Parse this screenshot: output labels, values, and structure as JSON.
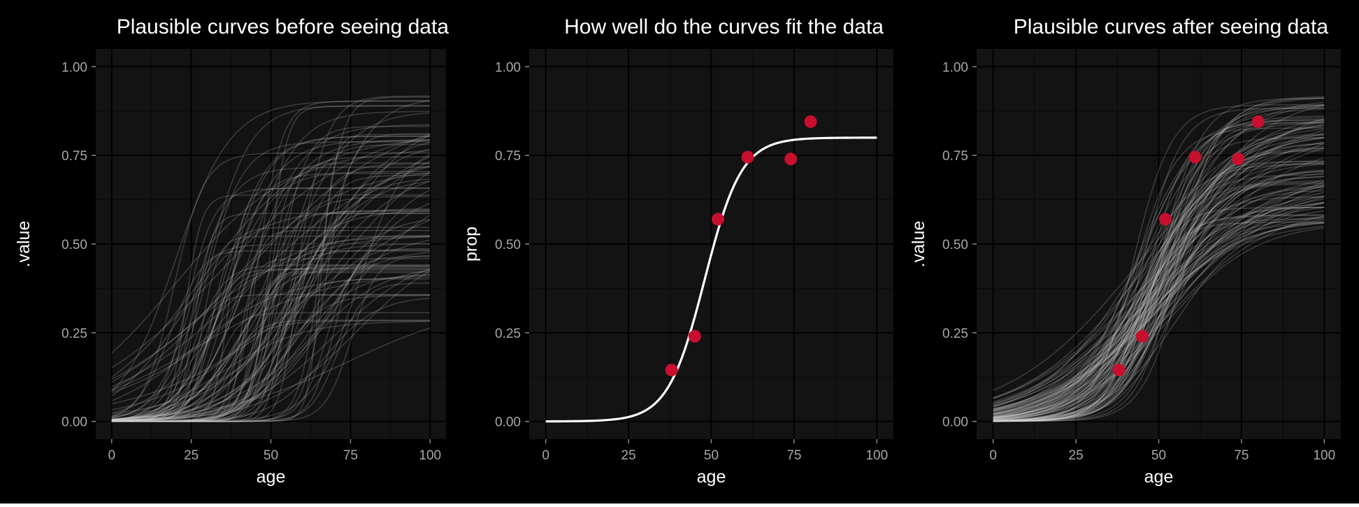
{
  "chart_data": [
    {
      "type": "line",
      "title": "Plausible curves before seeing data",
      "xlabel": "age",
      "ylabel": ".value",
      "xlim": [
        -5,
        105
      ],
      "ylim": [
        -0.05,
        1.05
      ],
      "x_ticks": [
        0,
        25,
        50,
        75,
        100
      ],
      "x_tick_labels": [
        "0",
        "25",
        "50",
        "75",
        "100"
      ],
      "y_ticks": [
        0,
        0.25,
        0.5,
        0.75,
        1
      ],
      "y_tick_labels": [
        "0.00",
        "0.25",
        "0.50",
        "0.75",
        "1.00"
      ],
      "grid": true,
      "line_color": "#d8d8d8",
      "curve_model": "logistic",
      "curve_count": 100,
      "curve_params": {
        "max_range": [
          0.28,
          0.92
        ],
        "midpoint_range": [
          18,
          78
        ],
        "slope_range": [
          0.04,
          0.5
        ]
      },
      "series": [],
      "points": []
    },
    {
      "type": "line",
      "title": "How well do the curves fit the data",
      "xlabel": "age",
      "ylabel": "prop",
      "xlim": [
        -5,
        105
      ],
      "ylim": [
        -0.05,
        1.05
      ],
      "x_ticks": [
        0,
        25,
        50,
        75,
        100
      ],
      "x_tick_labels": [
        "0",
        "25",
        "50",
        "75",
        "100"
      ],
      "y_ticks": [
        0,
        0.25,
        0.5,
        0.75,
        1
      ],
      "y_tick_labels": [
        "0.00",
        "0.25",
        "0.50",
        "0.75",
        "1.00"
      ],
      "grid": true,
      "line_color": "#ffffff",
      "curve_model": "logistic",
      "series": [
        {
          "max": 0.8,
          "midpoint": 48,
          "slope": 0.18
        }
      ],
      "point_color": "#c8102e",
      "points": [
        {
          "x": 38,
          "y": 0.145
        },
        {
          "x": 45,
          "y": 0.24
        },
        {
          "x": 52,
          "y": 0.57
        },
        {
          "x": 61,
          "y": 0.745
        },
        {
          "x": 74,
          "y": 0.74
        },
        {
          "x": 80,
          "y": 0.845
        }
      ]
    },
    {
      "type": "line",
      "title": "Plausible curves after seeing data",
      "xlabel": "age",
      "ylabel": ".value",
      "xlim": [
        -5,
        105
      ],
      "ylim": [
        -0.05,
        1.05
      ],
      "x_ticks": [
        0,
        25,
        50,
        75,
        100
      ],
      "x_tick_labels": [
        "0",
        "25",
        "50",
        "75",
        "100"
      ],
      "y_ticks": [
        0,
        0.25,
        0.5,
        0.75,
        1
      ],
      "y_tick_labels": [
        "0.00",
        "0.25",
        "0.50",
        "0.75",
        "1.00"
      ],
      "grid": true,
      "line_color": "#d8d8d8",
      "curve_model": "logistic",
      "curve_count": 100,
      "curve_params": {
        "max_range": [
          0.56,
          0.92
        ],
        "midpoint_range": [
          42,
          56
        ],
        "slope_range": [
          0.05,
          0.18
        ]
      },
      "series": [],
      "point_color": "#c8102e",
      "points": [
        {
          "x": 38,
          "y": 0.145
        },
        {
          "x": 45,
          "y": 0.24
        },
        {
          "x": 52,
          "y": 0.57
        },
        {
          "x": 61,
          "y": 0.745
        },
        {
          "x": 74,
          "y": 0.74
        },
        {
          "x": 80,
          "y": 0.845
        }
      ]
    }
  ],
  "colors": {
    "figure_background": "#000000",
    "panel_background": "#131313",
    "grid_major": "#000000",
    "grid_minor": "#0a0a0a",
    "title_text": "#ffffff",
    "axis_label_text": "#ffffff",
    "tick_label_text": "#a8a8a8"
  }
}
